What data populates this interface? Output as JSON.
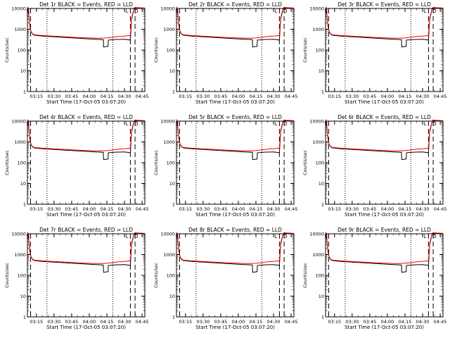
{
  "chart_data": [
    {
      "type": "line",
      "title": "Det 1r BLACK = Events, RED = LLD",
      "xlabel": "Start Time (17-Oct-05 03:07:20)",
      "ylabel": "Counts/sec"
    },
    {
      "type": "line",
      "title": "Det 2r BLACK = Events, RED = LLD",
      "xlabel": "Start Time (17-Oct-05 03:07:20)",
      "ylabel": "Counts/sec"
    },
    {
      "type": "line",
      "title": "Det 3r BLACK = Events, RED = LLD",
      "xlabel": "Start Time (17-Oct-05 03:07:20)",
      "ylabel": "Counts/sec"
    },
    {
      "type": "line",
      "title": "Det 4r BLACK = Events, RED = LLD",
      "xlabel": "Start Time (17-Oct-05 03:07:20)",
      "ylabel": "Counts/sec"
    },
    {
      "type": "line",
      "title": "Det 5r BLACK = Events, RED = LLD",
      "xlabel": "Start Time (17-Oct-05 03:07:20)",
      "ylabel": "Counts/sec"
    },
    {
      "type": "line",
      "title": "Det 6r BLACK = Events, RED = LLD",
      "xlabel": "Start Time (17-Oct-05 03:07:20)",
      "ylabel": "Counts/sec"
    },
    {
      "type": "line",
      "title": "Det 7r BLACK = Events, RED = LLD",
      "xlabel": "Start Time (17-Oct-05 03:07:20)",
      "ylabel": "Counts/sec"
    },
    {
      "type": "line",
      "title": "Det 8r BLACK = Events, RED = LLD",
      "xlabel": "Start Time (17-Oct-05 03:07:20)",
      "ylabel": "Counts/sec"
    },
    {
      "type": "line",
      "title": "Det 9r BLACK = Events, RED = LLD",
      "xlabel": "Start Time (17-Oct-05 03:07:20)",
      "ylabel": "Counts/sec"
    }
  ],
  "shared": {
    "x_range": [
      "03:07:20",
      "04:47:20"
    ],
    "xticks": [
      "03:15",
      "03:30",
      "03:45",
      "04:00",
      "04:15",
      "04:30",
      "04:45"
    ],
    "y_range": [
      1,
      10000
    ],
    "y_scale": "log",
    "yticks": [
      "1",
      "10",
      "100",
      "1000",
      "10000"
    ],
    "series_colors": {
      "events": "#000000",
      "lld": "#ff0000"
    },
    "vertical_markers": {
      "dashed": [
        "03:10",
        "04:35",
        "04:39"
      ],
      "dotted": [
        "03:24",
        "04:20"
      ],
      "top_labels": [
        "S",
        "L",
        "O"
      ],
      "top_label_times": [
        "03:07:45",
        "04:32",
        "04:40"
      ]
    },
    "series_events": {
      "x": [
        "03:07:20",
        "03:08",
        "03:08:40",
        "03:09:20",
        "03:10",
        "03:11",
        "03:12",
        "03:13",
        "03:15",
        "03:20",
        "03:30",
        "03:40",
        "03:50",
        "04:00",
        "04:05",
        "04:10",
        "04:12",
        "04:12:10",
        "04:16",
        "04:16:10",
        "04:22",
        "04:30",
        "04:35",
        "04:36",
        "04:38",
        "04:39",
        "04:40",
        "04:47:20"
      ],
      "y": [
        12000,
        10000,
        4000,
        1500,
        900,
        650,
        560,
        520,
        500,
        470,
        430,
        400,
        370,
        340,
        330,
        320,
        310,
        140,
        150,
        300,
        320,
        330,
        300,
        3000,
        9000,
        11000,
        10500,
        10000
      ]
    },
    "series_lld": {
      "x": [
        "03:07:20",
        "03:08",
        "03:08:40",
        "03:09:20",
        "03:10",
        "03:11",
        "03:12",
        "03:13",
        "03:15",
        "03:20",
        "03:30",
        "03:40",
        "03:50",
        "04:00",
        "04:05",
        "04:10",
        "04:15",
        "04:20",
        "04:25",
        "04:30",
        "04:35",
        "04:36",
        "04:38",
        "04:39",
        "04:40",
        "04:47:20"
      ],
      "y": [
        12000,
        10000,
        4000,
        1500,
        920,
        680,
        590,
        550,
        530,
        500,
        460,
        430,
        400,
        380,
        370,
        370,
        380,
        410,
        450,
        470,
        500,
        3500,
        9500,
        11500,
        11000,
        10500
      ]
    }
  }
}
